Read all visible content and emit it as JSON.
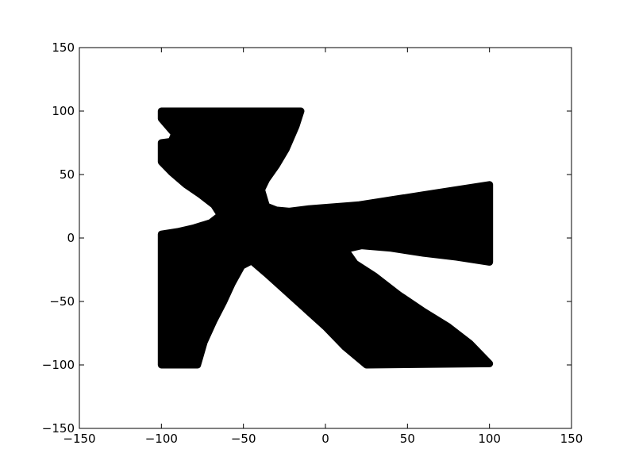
{
  "chart_data": {
    "type": "scatter",
    "title": "",
    "xlabel": "",
    "ylabel": "",
    "xlim": [
      -150,
      150
    ],
    "ylim": [
      -150,
      150
    ],
    "xticks": [
      -150,
      -100,
      -50,
      0,
      50,
      100,
      150
    ],
    "yticks": [
      -150,
      -100,
      -50,
      0,
      50,
      100,
      150
    ],
    "xtick_labels": [
      "−150",
      "−100",
      "−50",
      "0",
      "50",
      "100",
      "150"
    ],
    "ytick_labels": [
      "−150",
      "−100",
      "−50",
      "0",
      "50",
      "100",
      "150"
    ],
    "grid": false,
    "legend": "none",
    "marker_color": "#000000",
    "series": [
      {
        "description_outline_points": [
          [
            -100,
            100
          ],
          [
            -15,
            100
          ],
          [
            -18,
            88
          ],
          [
            -24,
            70
          ],
          [
            -30,
            57
          ],
          [
            -36,
            46
          ],
          [
            -39,
            38
          ],
          [
            -36,
            25
          ],
          [
            -30,
            22
          ],
          [
            -22,
            21
          ],
          [
            -10,
            23
          ],
          [
            0,
            24
          ],
          [
            20,
            26
          ],
          [
            40,
            30
          ],
          [
            60,
            34
          ],
          [
            80,
            38
          ],
          [
            100,
            42
          ],
          [
            100,
            -19
          ],
          [
            80,
            -15
          ],
          [
            60,
            -12
          ],
          [
            40,
            -8
          ],
          [
            22,
            -6
          ],
          [
            12,
            -9
          ],
          [
            18,
            -20
          ],
          [
            30,
            -30
          ],
          [
            45,
            -45
          ],
          [
            60,
            -58
          ],
          [
            75,
            -70
          ],
          [
            88,
            -83
          ],
          [
            100,
            -99
          ],
          [
            25,
            -100
          ],
          [
            12,
            -86
          ],
          [
            0,
            -70
          ],
          [
            -12,
            -56
          ],
          [
            -24,
            -42
          ],
          [
            -36,
            -28
          ],
          [
            -45,
            -18
          ],
          [
            -51,
            -22
          ],
          [
            -57,
            -36
          ],
          [
            -62,
            -50
          ],
          [
            -68,
            -65
          ],
          [
            -74,
            -82
          ],
          [
            -78,
            -100
          ],
          [
            -100,
            -100
          ],
          [
            -100,
            3
          ],
          [
            -90,
            5
          ],
          [
            -80,
            8
          ],
          [
            -70,
            12
          ],
          [
            -64,
            18
          ],
          [
            -68,
            26
          ],
          [
            -76,
            34
          ],
          [
            -85,
            42
          ],
          [
            -94,
            52
          ],
          [
            -100,
            60
          ],
          [
            -100,
            75
          ],
          [
            -94,
            76
          ],
          [
            -92,
            82
          ],
          [
            -96,
            88
          ],
          [
            -100,
            94
          ]
        ]
      }
    ]
  }
}
